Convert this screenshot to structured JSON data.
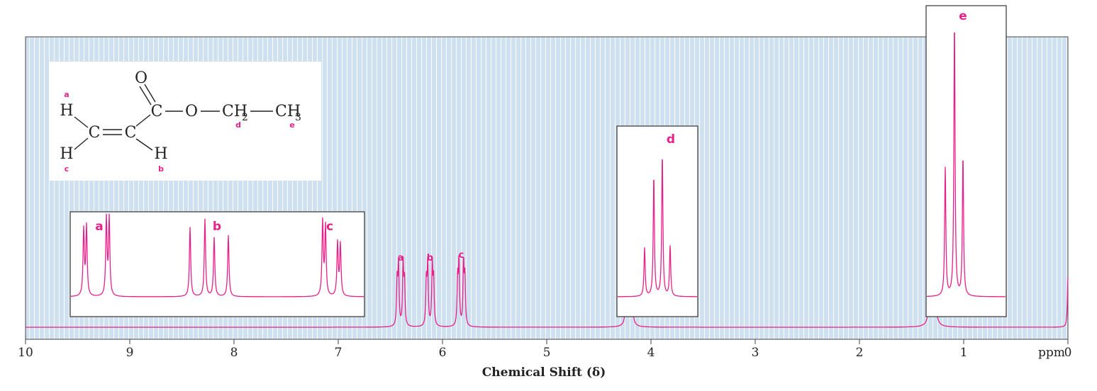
{
  "chart_data": {
    "type": "line",
    "xlabel": "Chemical Shift (δ)",
    "x_unit": "ppm",
    "xlim": [
      10,
      0
    ],
    "xticks": [
      "10",
      "9",
      "8",
      "7",
      "6",
      "5",
      "4",
      "3",
      "2",
      "1",
      "0"
    ],
    "series_color": "#e8208a",
    "background_color": "#cfe0f0",
    "grid": true,
    "peaks": [
      {
        "label": "a",
        "shift": 6.4,
        "height": 0.23,
        "multiplicity": "dd"
      },
      {
        "label": "b",
        "shift": 6.12,
        "height": 0.23,
        "multiplicity": "dd"
      },
      {
        "label": "c",
        "shift": 5.82,
        "height": 0.24,
        "multiplicity": "dd"
      },
      {
        "label": "d",
        "shift": 4.21,
        "height": 0.46,
        "multiplicity": "quartet"
      },
      {
        "label": "e",
        "shift": 1.3,
        "height": 0.95,
        "multiplicity": "triplet"
      },
      {
        "label": "",
        "shift": 0.0,
        "height": 0.18,
        "multiplicity": "singlet"
      }
    ],
    "insets": [
      {
        "labels": [
          "a",
          "b",
          "c"
        ],
        "multiplets": [
          "dd",
          "dd",
          "dd"
        ]
      },
      {
        "labels": [
          "d"
        ],
        "multiplets": [
          "quartet"
        ]
      },
      {
        "labels": [
          "e"
        ],
        "multiplets": [
          "triplet"
        ]
      }
    ]
  },
  "structure": {
    "o_atom": "O",
    "h_atom": "H",
    "c_atom": "C",
    "ch2": "CH",
    "ch2_sub": "2",
    "ch3": "CH",
    "ch3_sub": "3",
    "labels": [
      "a",
      "b",
      "c",
      "d",
      "e"
    ]
  }
}
